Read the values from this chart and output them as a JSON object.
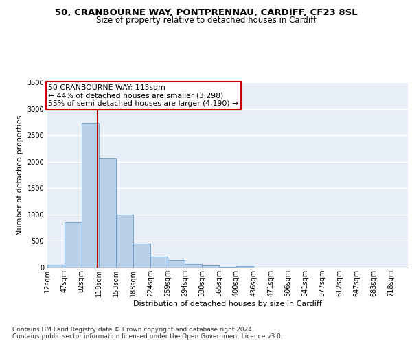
{
  "title": "50, CRANBOURNE WAY, PONTPRENNAU, CARDIFF, CF23 8SL",
  "subtitle": "Size of property relative to detached houses in Cardiff",
  "xlabel": "Distribution of detached houses by size in Cardiff",
  "ylabel": "Number of detached properties",
  "bar_edges": [
    12,
    47,
    82,
    118,
    153,
    188,
    224,
    259,
    294,
    330,
    365,
    400,
    436,
    471,
    506,
    541,
    577,
    612,
    647,
    683,
    718
  ],
  "bar_heights": [
    50,
    860,
    2720,
    2060,
    1000,
    460,
    210,
    140,
    65,
    35,
    10,
    30,
    5,
    5,
    2,
    2,
    1,
    1,
    1,
    1
  ],
  "bar_color": "#b8d0e8",
  "bar_edgecolor": "#6699cc",
  "background_color": "#e8eef8",
  "grid_color": "#ffffff",
  "vline_x": 115,
  "vline_color": "#cc0000",
  "annotation_text": "50 CRANBOURNE WAY: 115sqm\n← 44% of detached houses are smaller (3,298)\n55% of semi-detached houses are larger (4,190) →",
  "annotation_box_color": "#ffffff",
  "annotation_box_edgecolor": "#cc0000",
  "ylim": [
    0,
    3500
  ],
  "yticks": [
    0,
    500,
    1000,
    1500,
    2000,
    2500,
    3000,
    3500
  ],
  "xtick_labels": [
    "12sqm",
    "47sqm",
    "82sqm",
    "118sqm",
    "153sqm",
    "188sqm",
    "224sqm",
    "259sqm",
    "294sqm",
    "330sqm",
    "365sqm",
    "400sqm",
    "436sqm",
    "471sqm",
    "506sqm",
    "541sqm",
    "577sqm",
    "612sqm",
    "647sqm",
    "683sqm",
    "718sqm"
  ],
  "footnote1": "Contains HM Land Registry data © Crown copyright and database right 2024.",
  "footnote2": "Contains public sector information licensed under the Open Government Licence v3.0.",
  "title_fontsize": 9.5,
  "subtitle_fontsize": 8.5,
  "tick_fontsize": 7,
  "label_fontsize": 8,
  "annotation_fontsize": 7.8,
  "footnote_fontsize": 6.5
}
